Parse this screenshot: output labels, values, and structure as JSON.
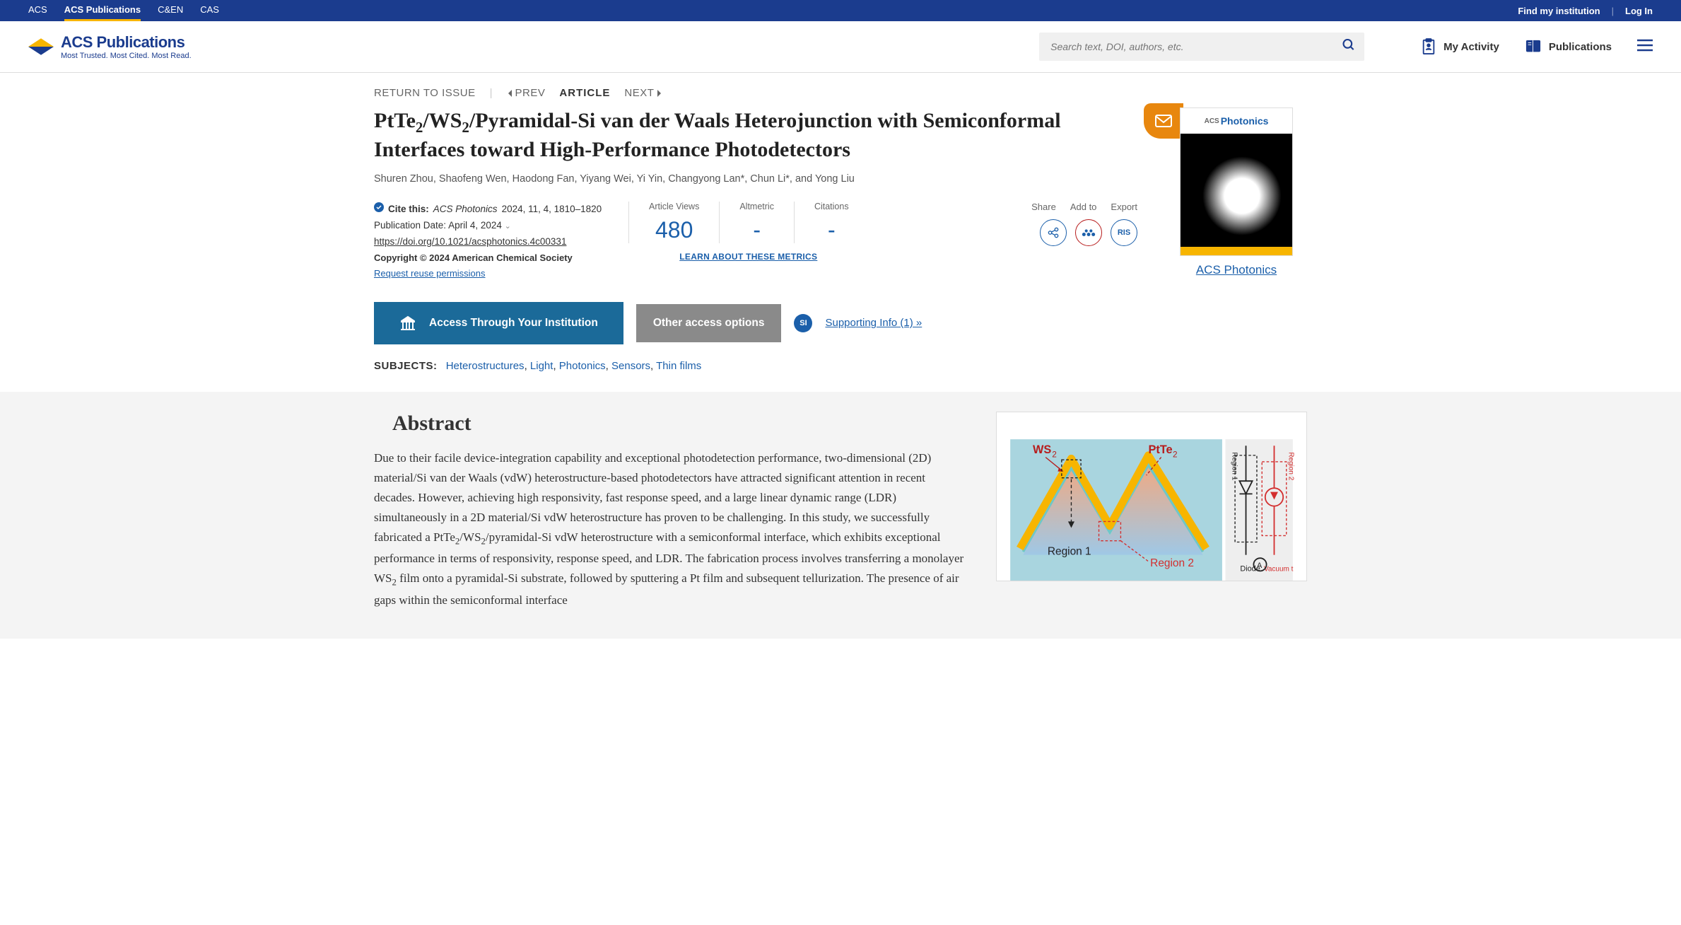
{
  "topbar": {
    "left": [
      "ACS",
      "ACS Publications",
      "C&EN",
      "CAS"
    ],
    "active_index": 1,
    "find": "Find my institution",
    "login": "Log In"
  },
  "header": {
    "logo_title": "ACS Publications",
    "logo_tag": "Most Trusted. Most Cited. Most Read.",
    "search_placeholder": "Search text, DOI, authors, etc.",
    "activity": "My Activity",
    "publications": "Publications"
  },
  "nav": {
    "return": "RETURN TO ISSUE",
    "prev": "PREV",
    "article": "ARTICLE",
    "next": "NEXT"
  },
  "article": {
    "title_html": "PtTe<sub>2</sub>/WS<sub>2</sub>/Pyramidal-Si van der Waals Heterojunction with Semiconformal Interfaces toward High-Performance Photodetectors",
    "authors": "Shuren Zhou, Shaofeng Wen, Haodong Fan, Yiyang Wei, Yi Yin, Changyong Lan*, Chun Li*, and Yong Liu"
  },
  "meta": {
    "cite_label": "Cite this:",
    "cite_journal": "ACS Photonics",
    "cite_ref": "2024, 11, 4, 1810–1820",
    "pub_date_label": "Publication Date:",
    "pub_date": "April 4, 2024",
    "doi": "https://doi.org/10.1021/acsphotonics.4c00331",
    "copyright": "Copyright © 2024 American Chemical Society",
    "reuse": "Request reuse permissions"
  },
  "metrics": {
    "views_label": "Article Views",
    "views": "480",
    "altmetric_label": "Altmetric",
    "altmetric": "-",
    "citations_label": "Citations",
    "citations": "-",
    "learn": "LEARN ABOUT THESE METRICS"
  },
  "actions": {
    "share": "Share",
    "addto": "Add to",
    "export": "Export",
    "ris": "RIS"
  },
  "journal": {
    "cover_label": "Photonics",
    "name": "ACS Photonics"
  },
  "access": {
    "institution": "Access Through Your Institution",
    "other": "Other access options",
    "si_badge": "SI",
    "si_link": "Supporting Info (1) »"
  },
  "subjects": {
    "label": "SUBJECTS:",
    "items": [
      "Heterostructures",
      "Light",
      "Photonics",
      "Sensors",
      "Thin films"
    ]
  },
  "abstract": {
    "title": "Abstract",
    "body_html": "Due to their facile device-integration capability and exceptional photodetection performance, two-dimensional (2D) material/Si van der Waals (vdW) heterostructure-based photodetectors have attracted significant attention in recent decades. However, achieving high responsivity, fast response speed, and a large linear dynamic range (LDR) simultaneously in a 2D material/Si vdW heterostructure has proven to be challenging. In this study, we successfully fabricated a PtTe<sub>2</sub>/WS<sub>2</sub>/pyramidal-Si vdW heterostructure with a semiconformal interface, which exhibits exceptional performance in terms of responsivity, response speed, and LDR. The fabrication process involves transferring a monolayer WS<sub>2</sub> film onto a pyramidal-Si substrate, followed by sputtering a Pt film and subsequent tellurization. The presence of air gaps within the semiconformal interface",
    "figure": {
      "background": "#a9d5df",
      "ws2_label": "WS",
      "ws2_sub": "2",
      "ws2_color": "#b71c1c",
      "ptte2_label": "PtTe",
      "ptte2_sub": "2",
      "ptte2_color": "#b71c1c",
      "region1": "Region 1",
      "region1_color": "#222",
      "region2": "Region 2",
      "region2_color": "#d32f2f",
      "side_region1": "Region 1",
      "side_region2": "Region 2",
      "diode": "Diode",
      "vacuum": "Vacuum t",
      "peak_fill_top": "#f7b500",
      "peak_fill_line": "#6fc7c7",
      "peak_grad_a": "#f4a87e",
      "peak_grad_b": "#9fc8e6"
    }
  },
  "colors": {
    "brand_blue": "#1b3c8e",
    "link_blue": "#1b5faa",
    "accent_yellow": "#f7b500",
    "btn_teal": "#1b6a99",
    "btn_gray": "#8a8a8a",
    "mail_orange": "#e8870e"
  }
}
